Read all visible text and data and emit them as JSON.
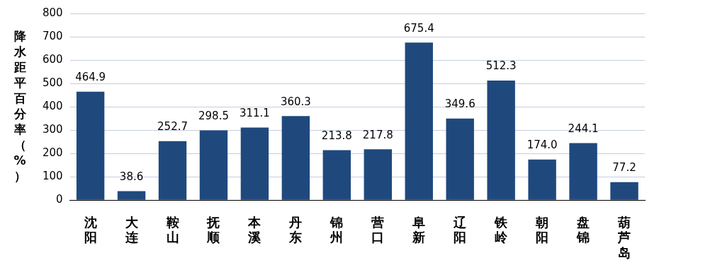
{
  "chart_data": {
    "type": "bar",
    "ylabel": "降水距平百分率（%）",
    "categories": [
      "沈阳",
      "大连",
      "鞍山",
      "抚顺",
      "本溪",
      "丹东",
      "锦州",
      "营口",
      "阜新",
      "辽阳",
      "铁岭",
      "朝阳",
      "盘锦",
      "葫芦岛"
    ],
    "values": [
      464.9,
      38.6,
      252.7,
      298.5,
      311.1,
      360.3,
      213.8,
      217.8,
      675.4,
      349.6,
      512.3,
      174.0,
      244.1,
      77.2
    ],
    "value_labels": [
      "464.9",
      "38.6",
      "252.7",
      "298.5",
      "311.1",
      "360.3",
      "213.8",
      "217.8",
      "675.4",
      "349.6",
      "512.3",
      "174.0",
      "244.1",
      "77.2"
    ],
    "color": "#1f497d",
    "ylim": [
      0,
      800
    ],
    "yticks": [
      0,
      100,
      200,
      300,
      400,
      500,
      600,
      700,
      800
    ],
    "grid": "y",
    "legend": false
  }
}
